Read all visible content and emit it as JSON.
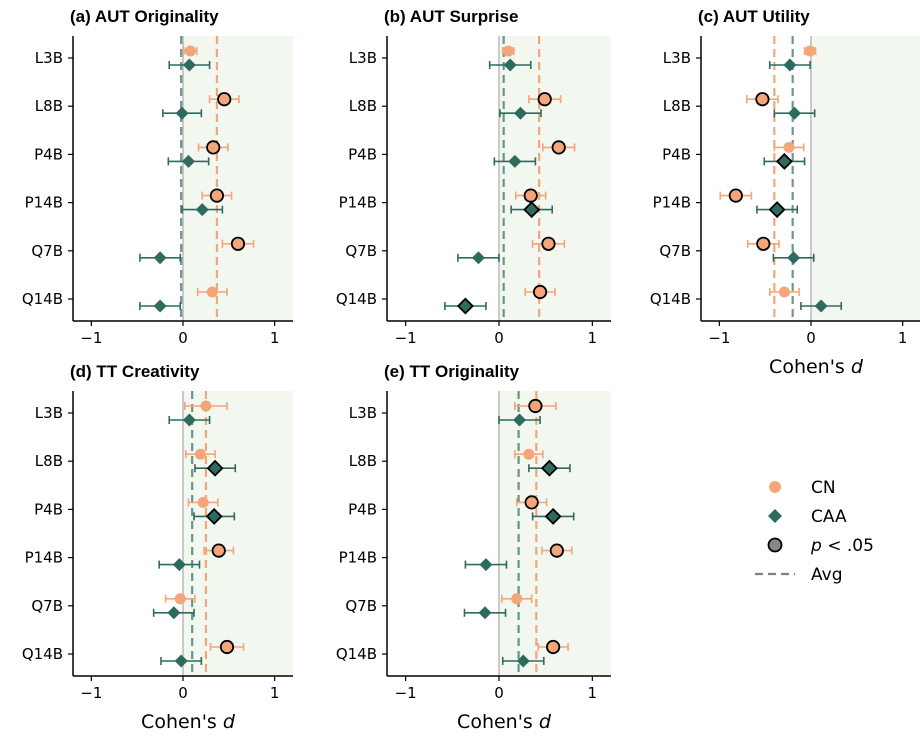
{
  "colors": {
    "cn": "#F4A57A",
    "caa": "#2E6B5E",
    "shade": "#F2F7F0",
    "avg_gray": "#808080",
    "zero_line": "#BBBBBB"
  },
  "chart_data": [
    {
      "type": "forest",
      "title": "(a) AUT Originality",
      "xlabel": "",
      "xlim": [
        -1.2,
        1.2
      ],
      "xticks": [
        -1,
        0,
        1
      ],
      "xtick_labels": [
        "−1",
        "0",
        "1"
      ],
      "categories": [
        "L3B",
        "L8B",
        "P4B",
        "P14B",
        "Q7B",
        "Q14B"
      ],
      "series": [
        {
          "name": "CN",
          "values": [
            0.08,
            0.45,
            0.33,
            0.37,
            0.6,
            0.32
          ],
          "err": [
            0.07,
            0.16,
            0.16,
            0.16,
            0.17,
            0.16
          ],
          "sig": [
            false,
            true,
            true,
            true,
            true,
            false
          ]
        },
        {
          "name": "CAA",
          "values": [
            0.07,
            -0.01,
            0.06,
            0.21,
            -0.25,
            -0.25
          ],
          "err": [
            0.22,
            0.21,
            0.22,
            0.22,
            0.22,
            0.22
          ],
          "sig": [
            false,
            false,
            false,
            false,
            false,
            false
          ]
        }
      ],
      "avg": {
        "CN": 0.37,
        "CAA": -0.02
      }
    },
    {
      "type": "forest",
      "title": "(b) AUT Surprise",
      "xlabel": "",
      "xlim": [
        -1.2,
        1.2
      ],
      "xticks": [
        -1,
        0,
        1
      ],
      "xtick_labels": [
        "−1",
        "0",
        "1"
      ],
      "categories": [
        "L3B",
        "L8B",
        "P4B",
        "P14B",
        "Q7B",
        "Q14B"
      ],
      "series": [
        {
          "name": "CN",
          "values": [
            0.1,
            0.49,
            0.64,
            0.34,
            0.53,
            0.44
          ],
          "err": [
            0.06,
            0.17,
            0.17,
            0.16,
            0.17,
            0.16
          ],
          "sig": [
            false,
            true,
            true,
            true,
            true,
            true
          ]
        },
        {
          "name": "CAA",
          "values": [
            0.12,
            0.23,
            0.17,
            0.35,
            -0.22,
            -0.36
          ],
          "err": [
            0.22,
            0.22,
            0.22,
            0.22,
            0.22,
            0.22
          ],
          "sig": [
            false,
            false,
            false,
            true,
            false,
            true
          ]
        }
      ],
      "avg": {
        "CN": 0.43,
        "CAA": 0.05
      }
    },
    {
      "type": "forest",
      "title": "(c) AUT Utility",
      "xlabel": "Cohen's d",
      "xlim": [
        -1.2,
        1.2
      ],
      "xticks": [
        -1,
        0,
        1
      ],
      "xtick_labels": [
        "−1",
        "0",
        "1"
      ],
      "categories": [
        "L3B",
        "L8B",
        "P4B",
        "P14B",
        "Q7B",
        "Q14B"
      ],
      "series": [
        {
          "name": "CN",
          "values": [
            -0.01,
            -0.53,
            -0.24,
            -0.82,
            -0.52,
            -0.29
          ],
          "err": [
            0.06,
            0.17,
            0.16,
            0.17,
            0.17,
            0.16
          ],
          "sig": [
            false,
            true,
            false,
            true,
            true,
            false
          ]
        },
        {
          "name": "CAA",
          "values": [
            -0.23,
            -0.18,
            -0.29,
            -0.37,
            -0.19,
            0.11
          ],
          "err": [
            0.22,
            0.22,
            0.22,
            0.22,
            0.22,
            0.22
          ],
          "sig": [
            false,
            false,
            true,
            true,
            false,
            false
          ]
        }
      ],
      "avg": {
        "CN": -0.4,
        "CAA": -0.2
      }
    },
    {
      "type": "forest",
      "title": "(d) TT Creativity",
      "xlabel": "Cohen's d",
      "xlim": [
        -1.2,
        1.2
      ],
      "xticks": [
        -1,
        0,
        1
      ],
      "xtick_labels": [
        "−1",
        "0",
        "1"
      ],
      "categories": [
        "L3B",
        "L8B",
        "P4B",
        "P14B",
        "Q7B",
        "Q14B"
      ],
      "series": [
        {
          "name": "CN",
          "values": [
            0.25,
            0.19,
            0.22,
            0.39,
            -0.03,
            0.48
          ],
          "err": [
            0.23,
            0.16,
            0.16,
            0.16,
            0.16,
            0.18
          ],
          "sig": [
            false,
            false,
            false,
            true,
            false,
            true
          ]
        },
        {
          "name": "CAA",
          "values": [
            0.07,
            0.35,
            0.34,
            -0.04,
            -0.1,
            -0.02
          ],
          "err": [
            0.22,
            0.22,
            0.22,
            0.22,
            0.22,
            0.22
          ],
          "sig": [
            false,
            true,
            true,
            false,
            false,
            false
          ]
        }
      ],
      "avg": {
        "CN": 0.25,
        "CAA": 0.1
      }
    },
    {
      "type": "forest",
      "title": "(e) TT Originality",
      "xlabel": "Cohen's d",
      "xlim": [
        -1.2,
        1.2
      ],
      "xticks": [
        -1,
        0,
        1
      ],
      "xtick_labels": [
        "−1",
        "0",
        "1"
      ],
      "categories": [
        "L3B",
        "L8B",
        "P4B",
        "P14B",
        "Q7B",
        "Q14B"
      ],
      "series": [
        {
          "name": "CN",
          "values": [
            0.39,
            0.32,
            0.35,
            0.62,
            0.19,
            0.58
          ],
          "err": [
            0.22,
            0.15,
            0.16,
            0.16,
            0.16,
            0.16
          ],
          "sig": [
            true,
            false,
            true,
            true,
            false,
            true
          ]
        },
        {
          "name": "CAA",
          "values": [
            0.22,
            0.54,
            0.58,
            -0.14,
            -0.15,
            0.26
          ],
          "err": [
            0.22,
            0.22,
            0.22,
            0.22,
            0.22,
            0.22
          ],
          "sig": [
            false,
            true,
            true,
            false,
            false,
            false
          ]
        }
      ],
      "avg": {
        "CN": 0.4,
        "CAA": 0.21
      }
    }
  ],
  "legend": {
    "placement": "right",
    "items": [
      {
        "name": "cn",
        "label": "CN"
      },
      {
        "name": "caa",
        "label": "CAA"
      },
      {
        "name": "sig",
        "label": "p < .05"
      },
      {
        "name": "avg",
        "label": "Avg"
      }
    ]
  }
}
